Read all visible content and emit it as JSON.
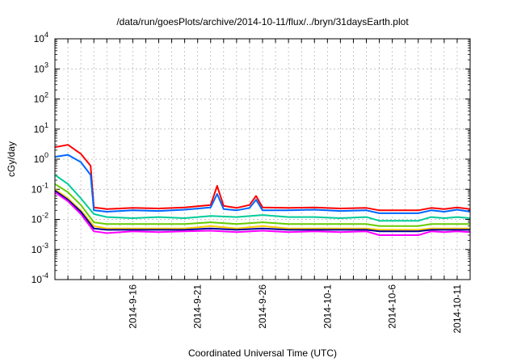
{
  "chart_data": {
    "type": "line",
    "title": "/data/run/goesPlots/archive/2014-10-11/flux/../bryn/31daysEarth.plot",
    "xlabel": "Coordinated Universal Time (UTC)",
    "ylabel": "cGy/day",
    "y_scale": "log",
    "ylim": [
      0.0001,
      10000
    ],
    "xlim": [
      "2014-09-10",
      "2014-10-12"
    ],
    "grid": true,
    "legend": "none",
    "y_ticks": [
      {
        "value": 0.0001,
        "base": "10",
        "exp": "-4"
      },
      {
        "value": 0.001,
        "base": "10",
        "exp": "-3"
      },
      {
        "value": 0.01,
        "base": "10",
        "exp": "-2"
      },
      {
        "value": 0.1,
        "base": "10",
        "exp": "-1"
      },
      {
        "value": 1,
        "base": "10",
        "exp": "0"
      },
      {
        "value": 10,
        "base": "10",
        "exp": "1"
      },
      {
        "value": 100,
        "base": "10",
        "exp": "2"
      },
      {
        "value": 1000,
        "base": "10",
        "exp": "3"
      },
      {
        "value": 10000,
        "base": "10",
        "exp": "4"
      }
    ],
    "x_ticks": [
      {
        "label": "2014-9-16",
        "date": "2014-09-16"
      },
      {
        "label": "2014-9-21",
        "date": "2014-09-21"
      },
      {
        "label": "2014-9-26",
        "date": "2014-09-26"
      },
      {
        "label": "2014-10-1",
        "date": "2014-10-01"
      },
      {
        "label": "2014-10-6",
        "date": "2014-10-06"
      },
      {
        "label": "2014-10-11",
        "date": "2014-10-11"
      }
    ],
    "series": [
      {
        "color": "#ff0000",
        "x": [
          "2014-09-10",
          "2014-09-11",
          "2014-09-12",
          "2014-09-12T18:00",
          "2014-09-13",
          "2014-09-14",
          "2014-09-16",
          "2014-09-18",
          "2014-09-20",
          "2014-09-22",
          "2014-09-22T12:00",
          "2014-09-23",
          "2014-09-24",
          "2014-09-25",
          "2014-09-25T12:00",
          "2014-09-26",
          "2014-09-28",
          "2014-09-30",
          "2014-10-02",
          "2014-10-04",
          "2014-10-05",
          "2014-10-06",
          "2014-10-07",
          "2014-10-08",
          "2014-10-09",
          "2014-10-10",
          "2014-10-11",
          "2014-10-12"
        ],
        "y": [
          2.5,
          3.0,
          1.5,
          0.6,
          0.025,
          0.022,
          0.024,
          0.023,
          0.025,
          0.03,
          0.13,
          0.028,
          0.024,
          0.03,
          0.06,
          0.025,
          0.024,
          0.025,
          0.023,
          0.024,
          0.02,
          0.02,
          0.02,
          0.02,
          0.024,
          0.022,
          0.025,
          0.022
        ]
      },
      {
        "color": "#0066ff",
        "x": [
          "2014-09-10",
          "2014-09-11",
          "2014-09-12",
          "2014-09-12T18:00",
          "2014-09-13",
          "2014-09-14",
          "2014-09-16",
          "2014-09-18",
          "2014-09-20",
          "2014-09-22",
          "2014-09-22T12:00",
          "2014-09-23",
          "2014-09-24",
          "2014-09-25",
          "2014-09-25T12:00",
          "2014-09-26",
          "2014-09-28",
          "2014-09-30",
          "2014-10-02",
          "2014-10-04",
          "2014-10-05",
          "2014-10-06",
          "2014-10-07",
          "2014-10-08",
          "2014-10-09",
          "2014-10-10",
          "2014-10-11",
          "2014-10-12"
        ],
        "y": [
          1.2,
          1.4,
          0.8,
          0.3,
          0.02,
          0.018,
          0.02,
          0.019,
          0.021,
          0.025,
          0.07,
          0.022,
          0.02,
          0.024,
          0.045,
          0.02,
          0.02,
          0.021,
          0.019,
          0.02,
          0.016,
          0.016,
          0.016,
          0.016,
          0.02,
          0.018,
          0.021,
          0.018
        ]
      },
      {
        "color": "#00cc99",
        "x": [
          "2014-09-10",
          "2014-09-11",
          "2014-09-12",
          "2014-09-13",
          "2014-09-14",
          "2014-09-16",
          "2014-09-18",
          "2014-09-20",
          "2014-09-22",
          "2014-09-24",
          "2014-09-26",
          "2014-09-28",
          "2014-09-30",
          "2014-10-02",
          "2014-10-04",
          "2014-10-05",
          "2014-10-06",
          "2014-10-07",
          "2014-10-08",
          "2014-10-09",
          "2014-10-10",
          "2014-10-11",
          "2014-10-12"
        ],
        "y": [
          0.3,
          0.15,
          0.05,
          0.015,
          0.012,
          0.011,
          0.012,
          0.011,
          0.013,
          0.012,
          0.014,
          0.012,
          0.012,
          0.011,
          0.012,
          0.009,
          0.009,
          0.009,
          0.009,
          0.012,
          0.011,
          0.012,
          0.011
        ]
      },
      {
        "color": "#66cc00",
        "x": [
          "2014-09-10",
          "2014-09-11",
          "2014-09-12",
          "2014-09-13",
          "2014-09-14",
          "2014-09-16",
          "2014-09-18",
          "2014-09-20",
          "2014-09-22",
          "2014-09-24",
          "2014-09-26",
          "2014-09-28",
          "2014-09-30",
          "2014-10-02",
          "2014-10-04",
          "2014-10-05",
          "2014-10-06",
          "2014-10-07",
          "2014-10-08",
          "2014-10-09",
          "2014-10-10",
          "2014-10-11",
          "2014-10-12"
        ],
        "y": [
          0.15,
          0.08,
          0.03,
          0.008,
          0.007,
          0.007,
          0.007,
          0.007,
          0.008,
          0.007,
          0.008,
          0.007,
          0.007,
          0.007,
          0.007,
          0.006,
          0.006,
          0.006,
          0.006,
          0.007,
          0.007,
          0.007,
          0.007
        ]
      },
      {
        "color": "#ffcc00",
        "x": [
          "2014-09-10",
          "2014-09-11",
          "2014-09-12",
          "2014-09-13",
          "2014-09-14",
          "2014-09-16",
          "2014-09-18",
          "2014-09-20",
          "2014-09-22",
          "2014-09-24",
          "2014-09-26",
          "2014-09-28",
          "2014-09-30",
          "2014-10-02",
          "2014-10-04",
          "2014-10-05",
          "2014-10-06",
          "2014-10-07",
          "2014-10-08",
          "2014-10-09",
          "2014-10-10",
          "2014-10-11",
          "2014-10-12"
        ],
        "y": [
          0.1,
          0.05,
          0.02,
          0.006,
          0.005,
          0.005,
          0.005,
          0.005,
          0.006,
          0.005,
          0.006,
          0.005,
          0.005,
          0.005,
          0.005,
          0.0045,
          0.0045,
          0.0045,
          0.0045,
          0.005,
          0.005,
          0.005,
          0.005
        ]
      },
      {
        "color": "#000099",
        "x": [
          "2014-09-10",
          "2014-09-11",
          "2014-09-12",
          "2014-09-13",
          "2014-09-14",
          "2014-09-16",
          "2014-09-18",
          "2014-09-20",
          "2014-09-22",
          "2014-09-24",
          "2014-09-26",
          "2014-09-28",
          "2014-09-30",
          "2014-10-02",
          "2014-10-04",
          "2014-10-05",
          "2014-10-06",
          "2014-10-07",
          "2014-10-08",
          "2014-10-09",
          "2014-10-10",
          "2014-10-11",
          "2014-10-12"
        ],
        "y": [
          0.09,
          0.045,
          0.018,
          0.005,
          0.0045,
          0.0045,
          0.0045,
          0.0045,
          0.005,
          0.0045,
          0.005,
          0.0045,
          0.0045,
          0.0045,
          0.0045,
          0.004,
          0.004,
          0.004,
          0.004,
          0.0045,
          0.0045,
          0.0045,
          0.0045
        ]
      },
      {
        "color": "#ff00ff",
        "x": [
          "2014-09-10",
          "2014-09-11",
          "2014-09-12",
          "2014-09-13",
          "2014-09-14",
          "2014-09-16",
          "2014-09-18",
          "2014-09-20",
          "2014-09-22",
          "2014-09-24",
          "2014-09-26",
          "2014-09-28",
          "2014-09-30",
          "2014-10-02",
          "2014-10-04",
          "2014-10-05",
          "2014-10-06",
          "2014-10-07",
          "2014-10-08",
          "2014-10-09",
          "2014-10-10",
          "2014-10-11",
          "2014-10-12"
        ],
        "y": [
          0.08,
          0.04,
          0.015,
          0.004,
          0.0035,
          0.004,
          0.0038,
          0.004,
          0.0042,
          0.0038,
          0.0042,
          0.0038,
          0.004,
          0.0038,
          0.004,
          0.003,
          0.003,
          0.003,
          0.003,
          0.004,
          0.0038,
          0.004,
          0.0038
        ]
      }
    ]
  }
}
